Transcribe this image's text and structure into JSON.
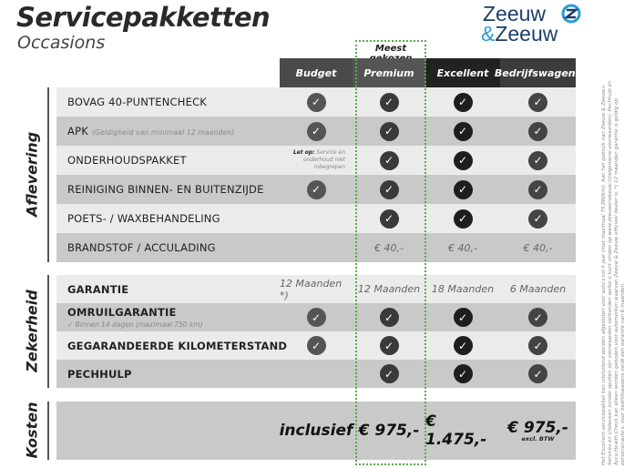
{
  "header": {
    "title": "Servicepakketten",
    "subtitle": "Occasions",
    "logo_line1": "Zeeuw",
    "logo_line2_amp": "&",
    "logo_line2": "Zeeuw",
    "most_chosen": "Meest gekozen"
  },
  "colors": {
    "accent_green": "#5aaa4a",
    "logo_blue": "#1d3f66",
    "logo_light_blue": "#2a9ad6"
  },
  "packages": [
    {
      "label": "Budget",
      "bg": "#4a4a4a",
      "check": "#555555"
    },
    {
      "label": "Premium",
      "bg": "#555555",
      "check": "#3a3a3a"
    },
    {
      "label": "Excellent",
      "bg": "#222222",
      "check": "#1e1e1e"
    },
    {
      "label": "Bedrijfswagens",
      "bg": "#3c3c3c",
      "check": "#444444"
    }
  ],
  "sections": [
    {
      "label": "Aflevering",
      "rows": [
        {
          "label": "BOVAG 40-PUNTENCHECK",
          "cells": [
            "check",
            "check",
            "check",
            "check"
          ]
        },
        {
          "label": "APK",
          "sub": "(Geldigheid van minimaal 12 maanden)",
          "cells": [
            "check",
            "check",
            "check",
            "check"
          ]
        },
        {
          "label": "ONDERHOUDSPAKKET",
          "cells": [
            "note",
            "check",
            "check",
            "check"
          ],
          "note_bold": "Let op:",
          "note": "Service en onderhoud niet inbegrepen"
        },
        {
          "label": "REINIGING BINNEN- EN BUITENZIJDE",
          "cells": [
            "check",
            "check",
            "check",
            "check"
          ]
        },
        {
          "label": "POETS- / WAXBEHANDELING",
          "cells": [
            "",
            "check",
            "check",
            "check"
          ]
        },
        {
          "label": "BRANDSTOF / ACCULADING",
          "cells": [
            "",
            "€ 40,-",
            "€ 40,-",
            "€ 40,-"
          ]
        }
      ]
    },
    {
      "label": "Zekerheid",
      "rows": [
        {
          "label": "GARANTIE",
          "cells": [
            "12 Maanden *)",
            "12 Maanden",
            "18 Maanden",
            "6 Maanden"
          ]
        },
        {
          "label": "OMRUILGARANTIE",
          "sub2": "✓   Binnen 14 dagen (maximaal 750 km)",
          "cells": [
            "check",
            "check",
            "check",
            "check"
          ]
        },
        {
          "label": "GEGARANDEERDE KILOMETERSTAND",
          "cells": [
            "check",
            "check",
            "check",
            "check"
          ]
        },
        {
          "label": "PECHHULP",
          "cells": [
            "",
            "check",
            "check",
            "check"
          ]
        }
      ]
    },
    {
      "label": "Kosten",
      "prices": [
        "inclusief",
        "€ 975,-",
        "€ 1.475,-",
        "€ 975,-"
      ],
      "price_note": "excl. BTW"
    }
  ],
  "footnote": "Het Excellent-servicepakket kan uitsluitend worden afgesloten voor auto's tot 5 jaar (met maximaal 75.000km). Aan het gebruik van Zeeuw & Zeeuw+ Services en Uitdeuken zonder spuiten zijn voorwaarden verbonden welke u kunt vinden op www.zeeuwenzeeuw.nl/algemene-voorwaarden/. Pechhulp en Accu Health Check kan alleen worden geboden voor automerken waarvan Zeeuw & Zeeuw officieel dealer is. *) 12 maanden garantie is geldig op personenauto's, voor bedrijfswagens geldt een garantie van 6 maanden."
}
